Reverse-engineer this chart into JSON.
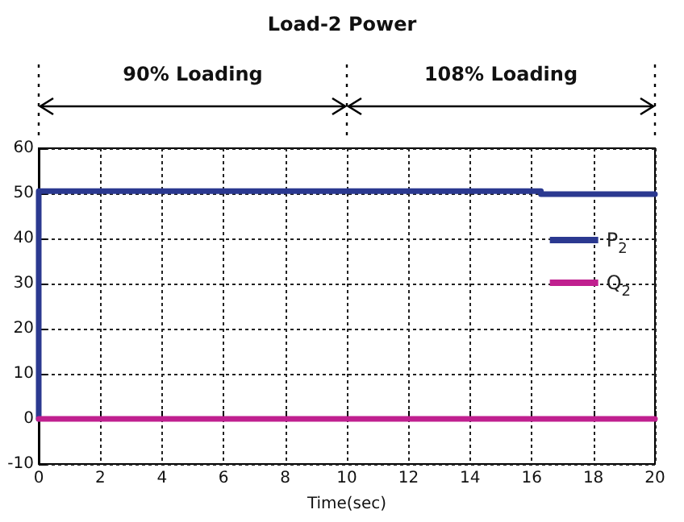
{
  "chart_data": {
    "type": "line",
    "title": "Load-2 Power",
    "xlabel": "Time(sec)",
    "annotations": [
      "90% Loading",
      "108% Loading"
    ],
    "series": [
      {
        "name": "P$_{2}$",
        "color": "#2b3990",
        "x": [
          0,
          0,
          16.3,
          16.3,
          20
        ],
        "values": [
          0,
          50.5,
          50.5,
          49.8,
          49.8
        ]
      },
      {
        "name": "Q$_{2}$",
        "color": "#c0208f",
        "x": [
          0,
          20
        ],
        "values": [
          0,
          0
        ]
      }
    ],
    "xlim": [
      0,
      20
    ],
    "xticks": [
      0,
      2,
      4,
      6,
      8,
      10,
      12,
      14,
      16,
      18,
      20
    ],
    "ylim": [
      -10,
      60
    ],
    "yticks": [
      -10,
      0,
      10,
      20,
      30,
      40,
      50,
      60
    ],
    "grid": true,
    "legend": "right",
    "line_style": "solid",
    "marker": "none"
  }
}
